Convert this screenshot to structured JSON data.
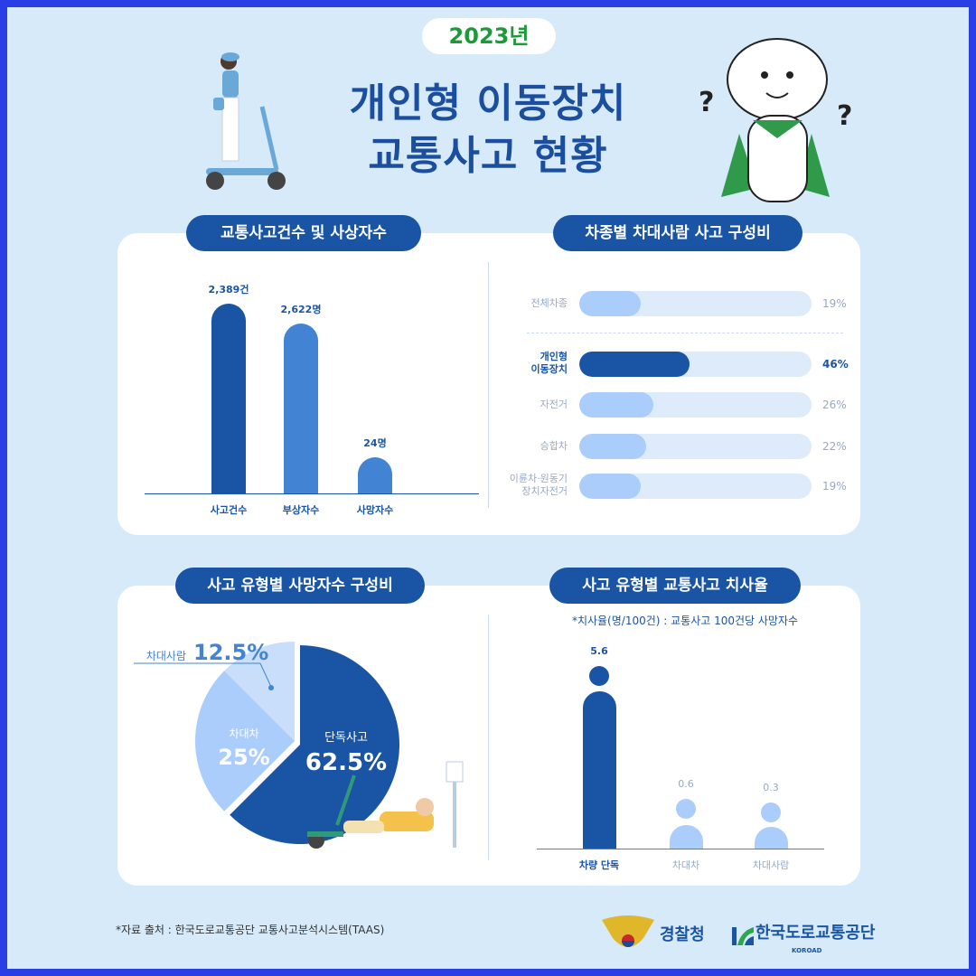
{
  "header": {
    "year": "2023년",
    "title_line1": "개인형 이동장치",
    "title_line2": "교통사고 현황"
  },
  "colors": {
    "dark": "#1a55a5",
    "mid": "#4283d4",
    "light": "#aacdfb",
    "lighter": "#c8defa",
    "track": "#deebfa",
    "year_green": "#1c9a3a",
    "border": "#2a3ee6",
    "background": "#d6eaf9"
  },
  "sections": {
    "s1": "교통사고건수 및 사상자수",
    "s2": "차종별 차대사람 사고 구성비",
    "s3": "사고 유형별 사망자수 구성비",
    "s4": "사고 유형별 교통사고 치사율"
  },
  "chart_data": [
    {
      "type": "bar",
      "categories": [
        "사고건수",
        "부상자수",
        "사망자수"
      ],
      "values": [
        2389,
        2622,
        24
      ],
      "data_labels": [
        "2,389건",
        "2,622명",
        "24명"
      ],
      "highlight": "사고건수"
    },
    {
      "type": "bar",
      "orientation": "horizontal",
      "categories": [
        "전체차종",
        "개인형 이동장치",
        "자전거",
        "승합차",
        "이륜차·원동기 장치자전거"
      ],
      "values": [
        19,
        46,
        26,
        22,
        19
      ],
      "data_labels": [
        "19%",
        "46%",
        "26%",
        "22%",
        "19%"
      ],
      "unit": "%",
      "highlight": "개인형 이동장치"
    },
    {
      "type": "pie",
      "categories": [
        "단독사고",
        "차대차",
        "차대사람"
      ],
      "values": [
        62.5,
        25,
        12.5
      ],
      "data_labels": [
        "62.5%",
        "25%",
        "12.5%"
      ]
    },
    {
      "type": "bar",
      "note": "*치사율(명/100건) : 교통사고 100건당 사망자수",
      "categories": [
        "차량 단독",
        "차대차",
        "차대사람"
      ],
      "values": [
        5.6,
        0.6,
        0.3
      ],
      "data_labels": [
        "5.6",
        "0.6",
        "0.3"
      ],
      "highlight": "차량 단독"
    }
  ],
  "footer": {
    "source": "*자료 출처 : 한국도로교통공단 교통사고분석시스템(TAAS)",
    "logo1": "경찰청",
    "logo2": "한국도로교통공단",
    "logo2_sub": "KOROAD"
  }
}
